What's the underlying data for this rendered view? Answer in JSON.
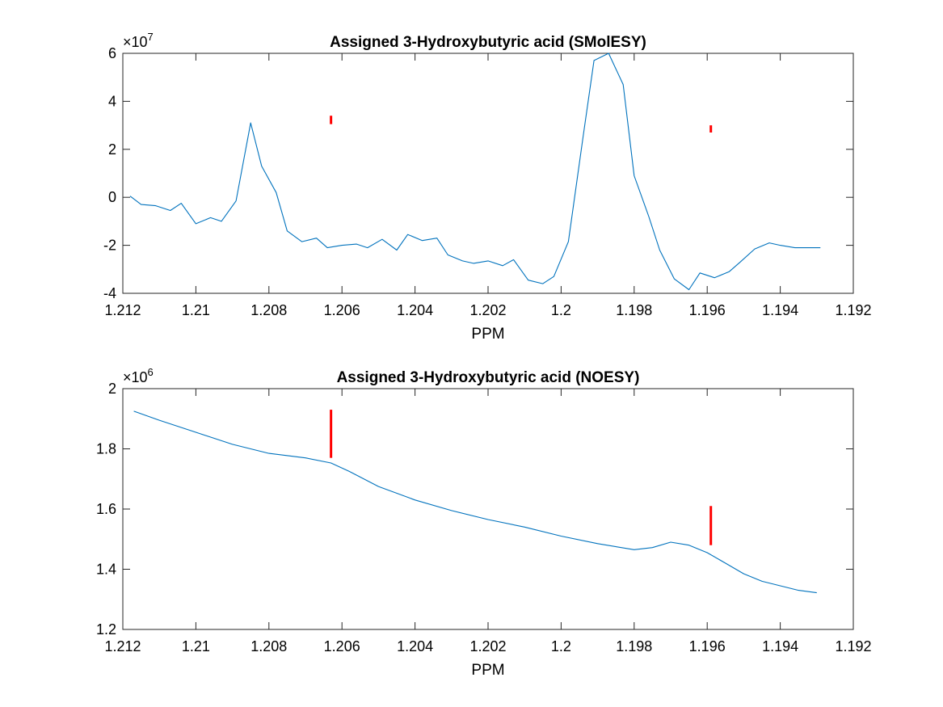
{
  "chart_data": [
    {
      "type": "line",
      "title": "Assigned 3-Hydroxybutyric acid  (SMolESY)",
      "xlabel": "PPM",
      "ylabel": "",
      "x_reversed": true,
      "xlim": [
        1.192,
        1.212
      ],
      "ylim": [
        -4,
        6
      ],
      "y_multiplier": "×10",
      "y_exponent": "7",
      "xticks": [
        1.212,
        1.21,
        1.208,
        1.206,
        1.204,
        1.202,
        1.2,
        1.198,
        1.196,
        1.194,
        1.192
      ],
      "xtick_labels": [
        "1.212",
        "1.21",
        "1.208",
        "1.206",
        "1.204",
        "1.202",
        "1.2",
        "1.198",
        "1.196",
        "1.194",
        "1.192"
      ],
      "yticks": [
        -4,
        -2,
        0,
        2,
        4,
        6
      ],
      "ytick_labels": [
        "-4",
        "-2",
        "0",
        "2",
        "4",
        "6"
      ],
      "series_color": "#0072BD",
      "marker_color": "#FF0000",
      "series": [
        {
          "x": [
            1.2118,
            1.2115,
            1.2111,
            1.2107,
            1.2104,
            1.21,
            1.2096,
            1.2093,
            1.2089,
            1.2085,
            1.2082,
            1.2078,
            1.2075,
            1.2071,
            1.2067,
            1.2064,
            1.206,
            1.2056,
            1.2053,
            1.2049,
            1.2045,
            1.2042,
            1.2038,
            1.2034,
            1.2031,
            1.2027,
            1.2024,
            1.202,
            1.2016,
            1.2013,
            1.2009,
            1.2005,
            1.2002,
            1.1998,
            1.1994,
            1.1991,
            1.1987,
            1.1983,
            1.198,
            1.1976,
            1.1973,
            1.1969,
            1.1965,
            1.1962,
            1.1958,
            1.1954,
            1.1951,
            1.1947,
            1.1943,
            1.194,
            1.1936,
            1.1932,
            1.1929
          ],
          "y": [
            0.05,
            -0.3,
            -0.35,
            -0.55,
            -0.25,
            -1.1,
            -0.85,
            -1.0,
            -0.15,
            3.1,
            1.3,
            0.2,
            -1.4,
            -1.85,
            -1.7,
            -2.1,
            -2.0,
            -1.95,
            -2.1,
            -1.75,
            -2.2,
            -1.55,
            -1.8,
            -1.7,
            -2.4,
            -2.65,
            -2.75,
            -2.65,
            -2.85,
            -2.6,
            -3.45,
            -3.6,
            -3.3,
            -1.85,
            2.5,
            5.7,
            6.0,
            4.7,
            0.9,
            -0.8,
            -2.2,
            -3.4,
            -3.85,
            -3.15,
            -3.35,
            -3.1,
            -2.7,
            -2.15,
            -1.9,
            -2.0,
            -2.1,
            -2.1,
            -2.1
          ]
        }
      ],
      "markers": [
        {
          "x": 1.2063,
          "y_from": 3.05,
          "y_to": 3.4
        },
        {
          "x": 1.1959,
          "y_from": 2.7,
          "y_to": 3.0
        }
      ]
    },
    {
      "type": "line",
      "title": "Assigned 3-Hydroxybutyric acid  (NOESY)",
      "xlabel": "PPM",
      "ylabel": "",
      "x_reversed": true,
      "xlim": [
        1.192,
        1.212
      ],
      "ylim": [
        1.2,
        2.0
      ],
      "y_multiplier": "×10",
      "y_exponent": "6",
      "xticks": [
        1.212,
        1.21,
        1.208,
        1.206,
        1.204,
        1.202,
        1.2,
        1.198,
        1.196,
        1.194,
        1.192
      ],
      "xtick_labels": [
        "1.212",
        "1.21",
        "1.208",
        "1.206",
        "1.204",
        "1.202",
        "1.2",
        "1.198",
        "1.196",
        "1.194",
        "1.192"
      ],
      "yticks": [
        1.2,
        1.4,
        1.6,
        1.8,
        2.0
      ],
      "ytick_labels": [
        "1.2",
        "1.4",
        "1.6",
        "1.8",
        "2"
      ],
      "series_color": "#0072BD",
      "marker_color": "#FF0000",
      "series": [
        {
          "x": [
            1.2117,
            1.211,
            1.21,
            1.209,
            1.208,
            1.207,
            1.2063,
            1.2058,
            1.205,
            1.204,
            1.203,
            1.202,
            1.201,
            1.2,
            1.199,
            1.198,
            1.1975,
            1.197,
            1.1965,
            1.196,
            1.1955,
            1.195,
            1.1945,
            1.194,
            1.1935,
            1.193
          ],
          "y": [
            1.925,
            1.895,
            1.855,
            1.815,
            1.785,
            1.77,
            1.753,
            1.725,
            1.675,
            1.63,
            1.595,
            1.565,
            1.54,
            1.51,
            1.485,
            1.465,
            1.472,
            1.49,
            1.48,
            1.455,
            1.42,
            1.385,
            1.36,
            1.345,
            1.33,
            1.322
          ]
        }
      ],
      "markers": [
        {
          "x": 1.2063,
          "y_from": 1.77,
          "y_to": 1.93
        },
        {
          "x": 1.1959,
          "y_from": 1.48,
          "y_to": 1.61
        }
      ]
    }
  ]
}
